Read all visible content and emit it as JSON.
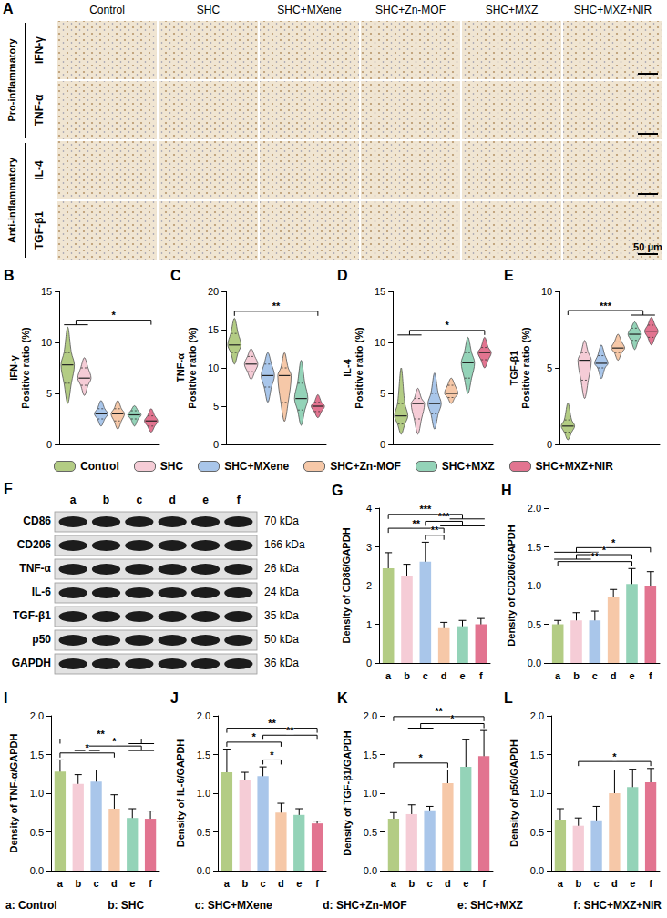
{
  "panel_a": {
    "panel": "A",
    "columns": [
      "Control",
      "SHC",
      "SHC+MXene",
      "SHC+Zn-MOF",
      "SHC+MXZ",
      "SHC+MXZ+NIR"
    ],
    "row_groups": [
      {
        "label": "Pro-inflammatory",
        "rows": [
          "IFN-γ",
          "TNF-α"
        ]
      },
      {
        "label": "Anti-inflammatory",
        "rows": [
          "IL-4",
          "TGF-β1"
        ]
      }
    ],
    "scale_bar": "50 μm"
  },
  "panel_f": {
    "panel": "F",
    "lanes": [
      "a",
      "b",
      "c",
      "d",
      "e",
      "f"
    ],
    "bands": [
      {
        "protein": "CD86",
        "size": "70 kDa"
      },
      {
        "protein": "CD206",
        "size": "166 kDa"
      },
      {
        "protein": "TNF-α",
        "size": "26 kDa"
      },
      {
        "protein": "IL-6",
        "size": "24 kDa"
      },
      {
        "protein": "TGF-β1",
        "size": "35 kDa"
      },
      {
        "protein": "p50",
        "size": "50 kDa"
      },
      {
        "protein": "GAPDH",
        "size": "36 kDa"
      }
    ]
  },
  "key": [
    "a: Control",
    "b: SHC",
    "c: SHC+MXene",
    "d: SHC+Zn-MOF",
    "e: SHC+MXZ",
    "f: SHC+MXZ+NIR"
  ],
  "chart_data": [
    {
      "panel": "B",
      "type": "violin",
      "y_label": [
        "IFN-γ",
        "Positive ratio (%)"
      ],
      "categories": [
        "Control",
        "SHC",
        "SHC+MXene",
        "SHC+Zn-MOF",
        "SHC+MXZ",
        "SHC+MXZ+NIR"
      ],
      "colors": [
        "#b3cc84",
        "#f5ccd6",
        "#a9c6ea",
        "#f6c8a8",
        "#94d3b8",
        "#e27490"
      ],
      "stats": {
        "min": [
          4,
          4.8,
          1.8,
          1.5,
          1.8,
          1.2
        ],
        "q1": [
          6,
          5.8,
          2.5,
          2.3,
          2.5,
          1.8
        ],
        "median": [
          7.8,
          6.5,
          3,
          3,
          2.9,
          2.3
        ],
        "q3": [
          9,
          7.5,
          3.5,
          3.5,
          3.3,
          2.8
        ],
        "max": [
          11.5,
          8.5,
          4.3,
          4.3,
          3.8,
          3.5
        ]
      },
      "ylim": [
        0,
        15
      ],
      "yticks": [
        0,
        5,
        10,
        15
      ],
      "grid": false,
      "tick_labels": "y",
      "significance": [
        {
          "left": [
            "Control",
            "SHC"
          ],
          "right": [
            "SHC+MXZ+NIR"
          ],
          "label": "*"
        }
      ]
    },
    {
      "panel": "C",
      "type": "violin",
      "y_label": [
        "TNF-α",
        "Positive ratio (%)"
      ],
      "categories": [
        "Control",
        "SHC",
        "SHC+MXene",
        "SHC+Zn-MOF",
        "SHC+MXZ",
        "SHC+MXZ+NIR"
      ],
      "colors": [
        "#b3cc84",
        "#f5ccd6",
        "#a9c6ea",
        "#f6c8a8",
        "#94d3b8",
        "#e27490"
      ],
      "stats": {
        "min": [
          10.5,
          8.5,
          5.5,
          3,
          2.5,
          3.5
        ],
        "q1": [
          12,
          9.5,
          7.5,
          5.5,
          4.5,
          4.3
        ],
        "median": [
          13,
          10.5,
          9,
          9,
          6,
          5
        ],
        "q3": [
          14.5,
          11.5,
          10.5,
          10,
          8,
          5.5
        ],
        "max": [
          16.5,
          12.5,
          12,
          12,
          11,
          6.5
        ]
      },
      "ylim": [
        0,
        20
      ],
      "yticks": [
        0,
        5,
        10,
        15,
        20
      ],
      "grid": false,
      "tick_labels": "y",
      "significance": [
        {
          "left": [
            "Control"
          ],
          "right": [
            "SHC+MXZ+NIR"
          ],
          "label": "**"
        }
      ]
    },
    {
      "panel": "D",
      "type": "violin",
      "y_label": [
        "IL-4",
        "Positive ratio (%)"
      ],
      "categories": [
        "Control",
        "SHC",
        "SHC+MXene",
        "SHC+Zn-MOF",
        "SHC+MXZ",
        "SHC+MXZ+NIR"
      ],
      "colors": [
        "#b3cc84",
        "#f5ccd6",
        "#a9c6ea",
        "#f6c8a8",
        "#94d3b8",
        "#e27490"
      ],
      "stats": {
        "min": [
          1,
          1,
          1.5,
          4,
          5,
          7.5
        ],
        "q1": [
          2,
          2.5,
          3,
          4.6,
          6.5,
          8.3
        ],
        "median": [
          2.8,
          4,
          4,
          5,
          8,
          9
        ],
        "q3": [
          4,
          4.5,
          5,
          5.8,
          9,
          9.5
        ],
        "max": [
          7.5,
          5.5,
          7,
          6.5,
          10.5,
          10.5
        ]
      },
      "ylim": [
        0,
        15
      ],
      "yticks": [
        0,
        5,
        10,
        15
      ],
      "grid": false,
      "tick_labels": "y",
      "significance": [
        {
          "left": [
            "Control",
            "SHC"
          ],
          "right": [
            "SHC+MXZ+NIR"
          ],
          "label": "*"
        }
      ]
    },
    {
      "panel": "E",
      "type": "violin",
      "y_label": [
        "TGF-β1",
        "Positive ratio (%)"
      ],
      "categories": [
        "Control",
        "SHC",
        "SHC+MXene",
        "SHC+Zn-MOF",
        "SHC+MXZ",
        "SHC+MXZ+NIR"
      ],
      "colors": [
        "#b3cc84",
        "#f5ccd6",
        "#a9c6ea",
        "#f6c8a8",
        "#94d3b8",
        "#e27490"
      ],
      "stats": {
        "min": [
          0.3,
          3,
          4.3,
          5.5,
          6.2,
          6.5
        ],
        "q1": [
          0.8,
          4.2,
          5,
          6,
          6.8,
          7
        ],
        "median": [
          1.2,
          5.5,
          5.3,
          6.3,
          7.2,
          7.4
        ],
        "q3": [
          1.6,
          6,
          5.8,
          6.7,
          7.6,
          7.8
        ],
        "max": [
          2.7,
          6.8,
          6.5,
          7.2,
          8,
          8.3
        ]
      },
      "ylim": [
        0,
        10
      ],
      "yticks": [
        0,
        5,
        10
      ],
      "grid": false,
      "tick_labels": "y",
      "significance": [
        {
          "left": [
            "Control"
          ],
          "right": [
            "SHC+MXZ",
            "SHC+MXZ+NIR"
          ],
          "label": "***"
        }
      ]
    },
    {
      "panel": "G",
      "type": "bar",
      "y_label": [
        "Density of CD86/GAPDH"
      ],
      "categories": [
        "a",
        "b",
        "c",
        "d",
        "e",
        "f"
      ],
      "colors": [
        "#b3cc84",
        "#f5ccd6",
        "#a9c6ea",
        "#f6c8a8",
        "#94d3b8",
        "#e27490"
      ],
      "values": [
        2.45,
        2.25,
        2.62,
        0.9,
        0.95,
        1.0
      ],
      "errors": [
        0.4,
        0.3,
        0.5,
        0.15,
        0.15,
        0.15
      ],
      "ylim": [
        0,
        4
      ],
      "yticks": [
        0,
        1,
        2,
        3,
        4
      ],
      "grid": false,
      "tick_labels": true,
      "significance": [
        {
          "left": [
            "a"
          ],
          "right": [
            "d",
            "e",
            "f"
          ],
          "label": "***"
        },
        {
          "left": [
            "a"
          ],
          "right": [
            "d"
          ],
          "label": "**"
        },
        {
          "left": [
            "c"
          ],
          "right": [
            "d",
            "e",
            "f"
          ],
          "label": "***"
        },
        {
          "left": [
            "c"
          ],
          "right": [
            "d"
          ],
          "label": "**"
        }
      ]
    },
    {
      "panel": "H",
      "type": "bar",
      "y_label": [
        "Density of CD206/GAPDH"
      ],
      "categories": [
        "a",
        "b",
        "c",
        "d",
        "e",
        "f"
      ],
      "colors": [
        "#b3cc84",
        "#f5ccd6",
        "#a9c6ea",
        "#f6c8a8",
        "#94d3b8",
        "#e27490"
      ],
      "values": [
        0.5,
        0.55,
        0.55,
        0.85,
        1.02,
        1.0
      ],
      "errors": [
        0.05,
        0.1,
        0.12,
        0.1,
        0.2,
        0.18
      ],
      "ylim": [
        0,
        2
      ],
      "yticks": [
        {
          "value": 0,
          "label": "0.0"
        },
        0.5,
        {
          "value": 1,
          "label": "1.0"
        },
        1.5,
        {
          "value": 2,
          "label": "2.0"
        }
      ],
      "grid": false,
      "tick_labels": true,
      "significance": [
        {
          "left": [
            "a"
          ],
          "right": [
            "e"
          ],
          "label": "**"
        },
        {
          "left": [
            "a",
            "b",
            "c"
          ],
          "right": [
            "e"
          ],
          "label": "*"
        },
        {
          "left": [
            "a",
            "b",
            "c"
          ],
          "right": [
            "f"
          ],
          "label": "*"
        }
      ]
    },
    {
      "panel": "I",
      "type": "bar",
      "y_label": [
        "Density of TNF-α/GAPDH"
      ],
      "categories": [
        "a",
        "b",
        "c",
        "d",
        "e",
        "f"
      ],
      "colors": [
        "#b3cc84",
        "#f5ccd6",
        "#a9c6ea",
        "#f6c8a8",
        "#94d3b8",
        "#e27490"
      ],
      "values": [
        1.28,
        1.12,
        1.15,
        0.8,
        0.68,
        0.67
      ],
      "errors": [
        0.15,
        0.12,
        0.15,
        0.18,
        0.12,
        0.1
      ],
      "ylim": [
        0,
        2
      ],
      "yticks": [
        {
          "value": 0,
          "label": "0.0"
        },
        0.5,
        {
          "value": 1,
          "label": "1.0"
        },
        1.5,
        {
          "value": 2,
          "label": "2.0"
        }
      ],
      "grid": false,
      "tick_labels": true,
      "significance": [
        {
          "left": [
            "a"
          ],
          "right": [
            "e",
            "f"
          ],
          "label": "**"
        },
        {
          "left": [
            "b",
            "c"
          ],
          "right": [
            "e",
            "f"
          ],
          "label": "*"
        },
        {
          "left": [
            "a"
          ],
          "right": [
            "d"
          ],
          "label": "*"
        }
      ]
    },
    {
      "panel": "J",
      "type": "bar",
      "y_label": [
        "Density of IL-6/GAPDH"
      ],
      "categories": [
        "a",
        "b",
        "c",
        "d",
        "e",
        "f"
      ],
      "colors": [
        "#b3cc84",
        "#f5ccd6",
        "#a9c6ea",
        "#f6c8a8",
        "#94d3b8",
        "#e27490"
      ],
      "values": [
        1.27,
        1.17,
        1.22,
        0.75,
        0.72,
        0.61
      ],
      "errors": [
        0.3,
        0.1,
        0.12,
        0.12,
        0.08,
        0.03
      ],
      "ylim": [
        0,
        2
      ],
      "yticks": [
        {
          "value": 0,
          "label": "0.0"
        },
        0.5,
        {
          "value": 1,
          "label": "1.0"
        },
        1.5,
        {
          "value": 2,
          "label": "2.0"
        }
      ],
      "grid": false,
      "tick_labels": true,
      "significance": [
        {
          "left": [
            "a"
          ],
          "right": [
            "d"
          ],
          "label": "*"
        },
        {
          "left": [
            "c"
          ],
          "right": [
            "f"
          ],
          "label": "**"
        },
        {
          "left": [
            "c"
          ],
          "right": [
            "d"
          ],
          "label": "*"
        },
        {
          "left": [
            "a"
          ],
          "right": [
            "f"
          ],
          "label": "**"
        }
      ]
    },
    {
      "panel": "K",
      "type": "bar",
      "y_label": [
        "Density of TGF-β1/GAPDH"
      ],
      "categories": [
        "a",
        "b",
        "c",
        "d",
        "e",
        "f"
      ],
      "colors": [
        "#b3cc84",
        "#f5ccd6",
        "#a9c6ea",
        "#f6c8a8",
        "#94d3b8",
        "#e27490"
      ],
      "values": [
        0.67,
        0.73,
        0.78,
        1.13,
        1.34,
        1.48
      ],
      "errors": [
        0.08,
        0.12,
        0.05,
        0.17,
        0.35,
        0.33
      ],
      "ylim": [
        0,
        2
      ],
      "yticks": [
        {
          "value": 0,
          "label": "0.0"
        },
        0.5,
        {
          "value": 1,
          "label": "1.0"
        },
        1.5,
        {
          "value": 2,
          "label": "2.0"
        }
      ],
      "grid": false,
      "tick_labels": true,
      "significance": [
        {
          "left": [
            "a"
          ],
          "right": [
            "f"
          ],
          "label": "**"
        },
        {
          "left": [
            "b",
            "c"
          ],
          "right": [
            "f"
          ],
          "label": "*"
        },
        {
          "left": [
            "a"
          ],
          "right": [
            "d"
          ],
          "label": "*"
        }
      ]
    },
    {
      "panel": "L",
      "type": "bar",
      "y_label": [
        "Density of p50/GAPDH"
      ],
      "categories": [
        "a",
        "b",
        "c",
        "d",
        "e",
        "f"
      ],
      "colors": [
        "#b3cc84",
        "#f5ccd6",
        "#a9c6ea",
        "#f6c8a8",
        "#94d3b8",
        "#e27490"
      ],
      "values": [
        0.66,
        0.58,
        0.65,
        1.0,
        1.08,
        1.14
      ],
      "errors": [
        0.14,
        0.1,
        0.18,
        0.3,
        0.23,
        0.18
      ],
      "ylim": [
        0,
        2
      ],
      "yticks": [
        {
          "value": 0,
          "label": "0.0"
        },
        0.5,
        {
          "value": 1,
          "label": "1.0"
        },
        1.5,
        {
          "value": 2,
          "label": "2.0"
        }
      ],
      "grid": false,
      "tick_labels": true,
      "significance": [
        {
          "left": [
            "b"
          ],
          "right": [
            "f"
          ],
          "label": "*"
        }
      ]
    }
  ]
}
